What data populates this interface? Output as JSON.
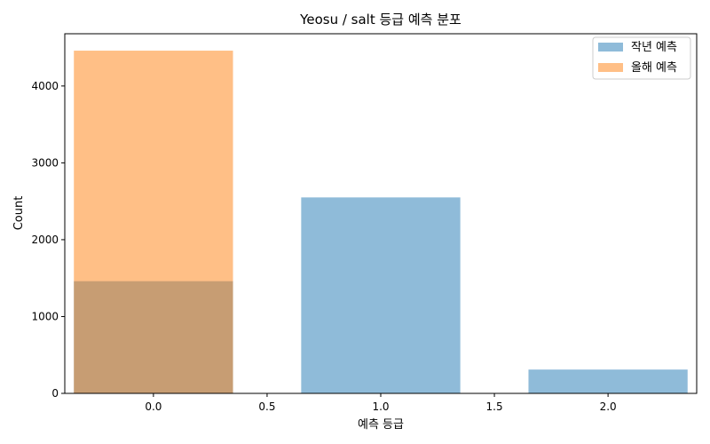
{
  "chart_data": {
    "type": "bar",
    "title": "Yeosu / salt 등급 예측 분포",
    "xlabel": "예측 등급",
    "ylabel": "Count",
    "xlim": [
      -0.39,
      2.39
    ],
    "ylim": [
      0,
      4680
    ],
    "x_ticks": [
      0.0,
      0.5,
      1.0,
      1.5,
      2.0
    ],
    "x_tick_labels": [
      "0.0",
      "0.5",
      "1.0",
      "1.5",
      "2.0"
    ],
    "y_ticks": [
      0,
      1000,
      2000,
      3000,
      4000
    ],
    "y_tick_labels": [
      "0",
      "1000",
      "2000",
      "3000",
      "4000"
    ],
    "bar_width": 0.7,
    "grid": false,
    "legend_position": "top-right",
    "series": [
      {
        "name": "작년 예측",
        "color": "#1f77b4",
        "opacity": 0.5,
        "x": [
          0.0,
          1.0,
          2.0
        ],
        "values": [
          1460,
          2550,
          310
        ]
      },
      {
        "name": "올해 예측",
        "color": "#ff7f0e",
        "opacity": 0.5,
        "x": [
          0.0
        ],
        "values": [
          4460
        ]
      }
    ]
  }
}
